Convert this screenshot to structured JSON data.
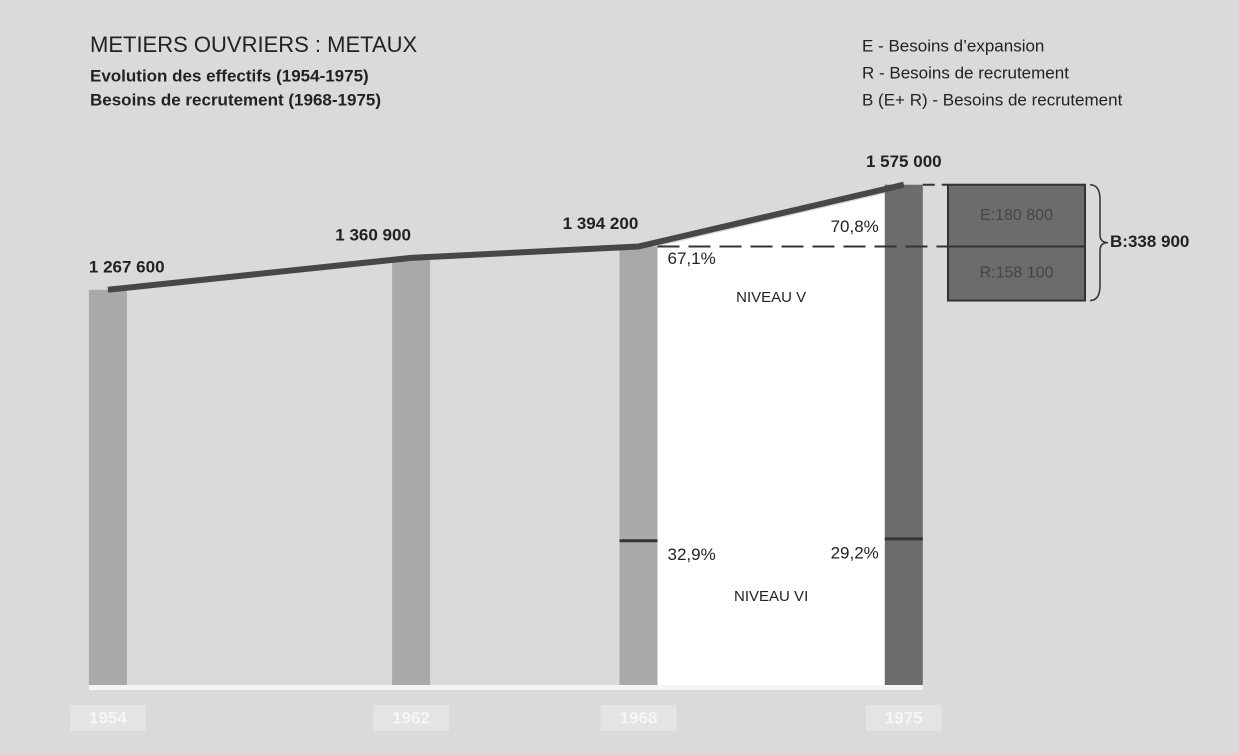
{
  "chart_data": {
    "type": "line",
    "title": "METIERS OUVRIERS : METAUX",
    "subtitle": [
      "Evolution des effectifs (1954-1975)",
      "Besoins de recrutement (1968-1975)"
    ],
    "legend": [
      "E - Besoins d’expansion",
      "R - Besoins de recrutement",
      "B (E+ R) - Besoins de recrutement"
    ],
    "x": [
      1954,
      1962,
      1968,
      1975
    ],
    "xlim": [
      1953,
      1982
    ],
    "values": [
      1267600,
      1360900,
      1394200,
      1575000
    ],
    "value_labels": [
      "1 267 600",
      "1 360 900",
      "1 394 200",
      "1 575 000"
    ],
    "ylim": [
      0,
      1700000
    ],
    "color": "#474747",
    "bar_color": "#a9a9a9",
    "last_bar_color": "#6c6c6c",
    "levels": [
      {
        "name": "NIVEAU V",
        "values": [
          null,
          null,
          67.1,
          70.8
        ],
        "value_labels": [
          null,
          null,
          "67,1%",
          "70,8%"
        ]
      },
      {
        "name": "NIVEAU VI",
        "values": [
          null,
          null,
          32.9,
          29.2
        ],
        "value_labels": [
          null,
          null,
          "32,9%",
          "29,2%"
        ]
      }
    ],
    "needs": [
      {
        "label": "E:180 800",
        "value": 180800
      },
      {
        "label": "R:158 100",
        "value": 158100
      }
    ],
    "total_need": {
      "label": "B:338 900",
      "value": 338900
    }
  }
}
